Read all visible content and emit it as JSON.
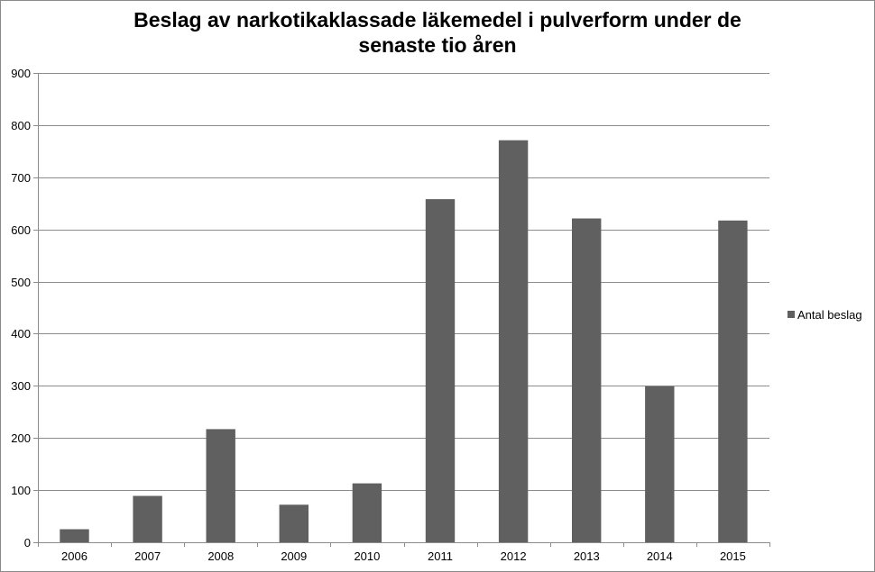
{
  "chart_data": {
    "type": "bar",
    "title_lines": [
      "Beslag av narkotikaklassade läkemedel i pulverform under de",
      "senaste tio åren"
    ],
    "categories": [
      "2006",
      "2007",
      "2008",
      "2009",
      "2010",
      "2011",
      "2012",
      "2013",
      "2014",
      "2015"
    ],
    "series": [
      {
        "name": "Antal beslag",
        "color": "#606060",
        "values": [
          25,
          89,
          217,
          72,
          113,
          658,
          771,
          621,
          299,
          617
        ]
      }
    ],
    "ylim": [
      0,
      900
    ],
    "yticks": [
      0,
      100,
      200,
      300,
      400,
      500,
      600,
      700,
      800,
      900
    ],
    "grid": true,
    "legend_position": "right"
  }
}
